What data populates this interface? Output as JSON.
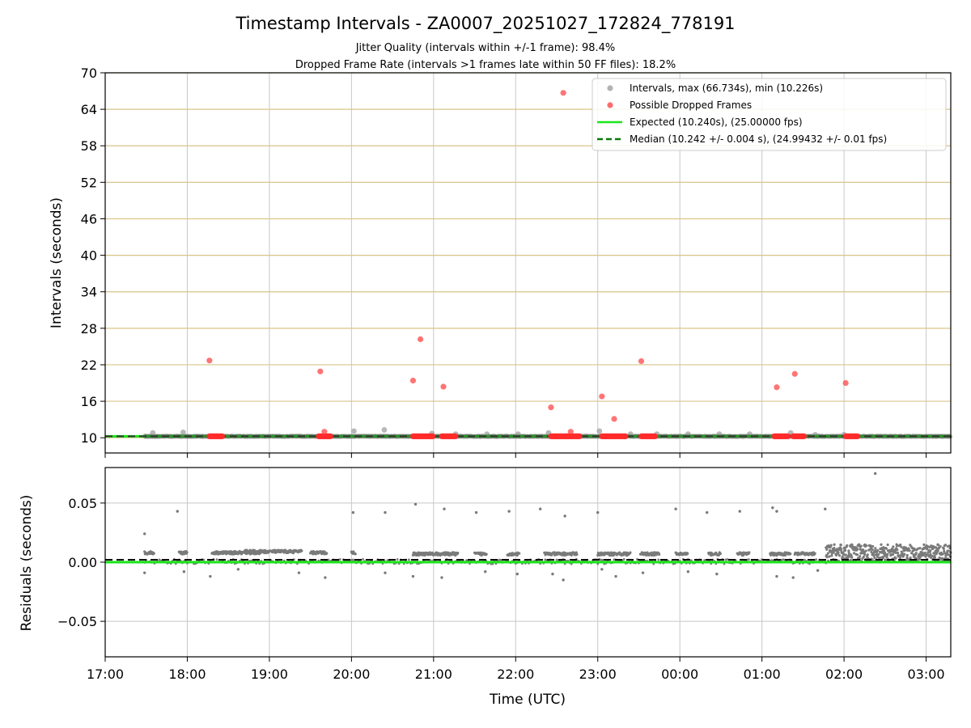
{
  "chart_data": [
    {
      "type": "scatter",
      "title": "Timestamp Intervals - ZA0007_20251027_172824_778191",
      "subtitle": [
        "Jitter Quality (intervals within +/-1 frame): 98.4%",
        "Dropped Frame Rate (intervals >1 frames late within 50 FF files): 18.2%"
      ],
      "ylabel": "Intervals (seconds)",
      "ylim": [
        7.5,
        70
      ],
      "yticks": [
        10,
        16,
        22,
        28,
        34,
        40,
        46,
        52,
        58,
        64,
        70
      ],
      "xlim_hours": [
        17.0,
        27.3
      ],
      "grid": true,
      "legend_position": "top-right",
      "legend": [
        "Intervals, max (66.734s), min (10.226s)",
        "Possible Dropped Frames",
        "Expected (10.240s), (25.00000 fps)",
        "Median (10.242 +/- 0.004 s), (24.99432 +/- 0.01 fps)"
      ],
      "expected_interval": 10.24,
      "median_interval": 10.242,
      "series_intervals_range_hours": [
        17.48,
        27.3
      ],
      "series_intervals_value": 10.24,
      "gray_bumps": [
        {
          "x": 17.58,
          "y": 10.8
        },
        {
          "x": 17.95,
          "y": 10.9
        },
        {
          "x": 20.03,
          "y": 11.1
        },
        {
          "x": 20.4,
          "y": 11.3
        },
        {
          "x": 20.98,
          "y": 10.7
        },
        {
          "x": 21.27,
          "y": 10.6
        },
        {
          "x": 21.65,
          "y": 10.6
        },
        {
          "x": 22.03,
          "y": 10.6
        },
        {
          "x": 22.4,
          "y": 10.8
        },
        {
          "x": 23.02,
          "y": 11.1
        },
        {
          "x": 23.4,
          "y": 10.6
        },
        {
          "x": 23.72,
          "y": 10.6
        },
        {
          "x": 24.1,
          "y": 10.6
        },
        {
          "x": 24.48,
          "y": 10.6
        },
        {
          "x": 24.85,
          "y": 10.6
        },
        {
          "x": 25.35,
          "y": 10.8
        },
        {
          "x": 25.65,
          "y": 10.5
        },
        {
          "x": 26.0,
          "y": 10.5
        }
      ],
      "dropped_points": [
        {
          "x": 18.27,
          "y": 22.7
        },
        {
          "x": 19.62,
          "y": 20.9
        },
        {
          "x": 19.67,
          "y": 11.0
        },
        {
          "x": 20.75,
          "y": 19.4
        },
        {
          "x": 20.84,
          "y": 26.2
        },
        {
          "x": 21.12,
          "y": 18.4
        },
        {
          "x": 22.43,
          "y": 15.0
        },
        {
          "x": 22.58,
          "y": 66.7
        },
        {
          "x": 22.67,
          "y": 11.0
        },
        {
          "x": 23.05,
          "y": 16.8
        },
        {
          "x": 23.2,
          "y": 13.1
        },
        {
          "x": 23.53,
          "y": 22.6
        },
        {
          "x": 25.18,
          "y": 18.3
        },
        {
          "x": 25.4,
          "y": 20.5
        },
        {
          "x": 26.02,
          "y": 19.0
        }
      ],
      "dropped_clusters_hours": [
        [
          18.27,
          18.43
        ],
        [
          19.6,
          19.75
        ],
        [
          20.75,
          21.0
        ],
        [
          21.1,
          21.27
        ],
        [
          22.43,
          22.78
        ],
        [
          23.05,
          23.35
        ],
        [
          23.53,
          23.7
        ],
        [
          25.15,
          25.32
        ],
        [
          25.38,
          25.52
        ],
        [
          26.02,
          26.17
        ]
      ],
      "dropped_cluster_value": 10.24
    },
    {
      "type": "scatter",
      "ylabel": "Residuals (seconds)",
      "xlabel": "Time (UTC)",
      "ylim": [
        -0.08,
        0.08
      ],
      "yticks": [
        -0.05,
        0.0,
        0.05
      ],
      "ytick_labels": [
        "−0.05",
        "0.00",
        "0.05"
      ],
      "xlim_hours": [
        17.0,
        27.3
      ],
      "xticks_hours": [
        17,
        18,
        19,
        20,
        21,
        22,
        23,
        24,
        25,
        26,
        27
      ],
      "xtick_labels": [
        "17:00",
        "18:00",
        "19:00",
        "20:00",
        "21:00",
        "22:00",
        "23:00",
        "00:00",
        "01:00",
        "02:00",
        "03:00"
      ],
      "grid": true,
      "expected_residual": 0.0,
      "median_residual": 0.002,
      "residual_segments": [
        {
          "start": 17.48,
          "end": 17.6,
          "value": 0.008
        },
        {
          "start": 17.9,
          "end": 18.0,
          "value": 0.008
        },
        {
          "start": 18.3,
          "end": 18.9,
          "value": 0.008
        },
        {
          "start": 18.7,
          "end": 19.1,
          "value": 0.009
        },
        {
          "start": 19.1,
          "end": 19.4,
          "value": 0.009
        },
        {
          "start": 19.5,
          "end": 19.7,
          "value": 0.008
        },
        {
          "start": 20.0,
          "end": 20.05,
          "value": 0.008
        },
        {
          "start": 20.75,
          "end": 21.2,
          "value": 0.007
        },
        {
          "start": 21.2,
          "end": 21.3,
          "value": 0.007
        },
        {
          "start": 21.5,
          "end": 21.65,
          "value": 0.007
        },
        {
          "start": 21.9,
          "end": 22.05,
          "value": 0.007
        },
        {
          "start": 22.35,
          "end": 22.75,
          "value": 0.007
        },
        {
          "start": 23.0,
          "end": 23.4,
          "value": 0.007
        },
        {
          "start": 23.52,
          "end": 23.75,
          "value": 0.007
        },
        {
          "start": 23.95,
          "end": 24.1,
          "value": 0.007
        },
        {
          "start": 24.35,
          "end": 24.5,
          "value": 0.007
        },
        {
          "start": 24.7,
          "end": 24.85,
          "value": 0.007
        },
        {
          "start": 25.1,
          "end": 25.35,
          "value": 0.007
        },
        {
          "start": 25.4,
          "end": 25.65,
          "value": 0.007
        }
      ],
      "residual_dense_region": {
        "start": 25.78,
        "end": 27.3,
        "low": 0.0,
        "high": 0.015
      },
      "residual_outliers": [
        {
          "x": 17.48,
          "y": 0.024
        },
        {
          "x": 17.88,
          "y": 0.043
        },
        {
          "x": 20.02,
          "y": 0.042
        },
        {
          "x": 20.41,
          "y": 0.042
        },
        {
          "x": 20.78,
          "y": 0.049
        },
        {
          "x": 21.13,
          "y": 0.045
        },
        {
          "x": 21.52,
          "y": 0.042
        },
        {
          "x": 21.92,
          "y": 0.043
        },
        {
          "x": 22.3,
          "y": 0.045
        },
        {
          "x": 22.6,
          "y": 0.039
        },
        {
          "x": 23.0,
          "y": 0.042
        },
        {
          "x": 23.95,
          "y": 0.045
        },
        {
          "x": 24.33,
          "y": 0.042
        },
        {
          "x": 24.73,
          "y": 0.043
        },
        {
          "x": 25.13,
          "y": 0.046
        },
        {
          "x": 25.18,
          "y": 0.043
        },
        {
          "x": 25.77,
          "y": 0.045
        },
        {
          "x": 26.38,
          "y": 0.075
        },
        {
          "x": 17.48,
          "y": -0.009
        },
        {
          "x": 17.96,
          "y": -0.008
        },
        {
          "x": 18.28,
          "y": -0.012
        },
        {
          "x": 18.62,
          "y": -0.006
        },
        {
          "x": 19.36,
          "y": -0.009
        },
        {
          "x": 19.68,
          "y": -0.013
        },
        {
          "x": 20.41,
          "y": -0.009
        },
        {
          "x": 20.75,
          "y": -0.012
        },
        {
          "x": 21.1,
          "y": -0.013
        },
        {
          "x": 21.63,
          "y": -0.008
        },
        {
          "x": 22.02,
          "y": -0.01
        },
        {
          "x": 22.45,
          "y": -0.01
        },
        {
          "x": 22.58,
          "y": -0.015
        },
        {
          "x": 23.05,
          "y": -0.006
        },
        {
          "x": 23.22,
          "y": -0.012
        },
        {
          "x": 23.55,
          "y": -0.009
        },
        {
          "x": 24.1,
          "y": -0.008
        },
        {
          "x": 24.45,
          "y": -0.01
        },
        {
          "x": 25.18,
          "y": -0.012
        },
        {
          "x": 25.38,
          "y": -0.013
        },
        {
          "x": 25.68,
          "y": -0.007
        }
      ]
    }
  ]
}
